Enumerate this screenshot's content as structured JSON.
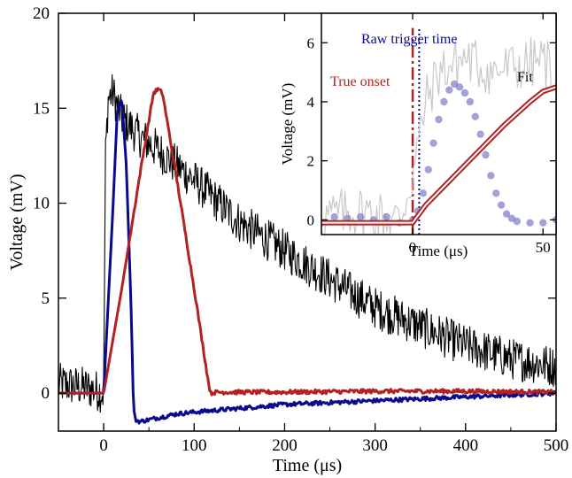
{
  "chart_data": [
    {
      "type": "line",
      "xlabel": "Time (μs)",
      "ylabel": "Voltage (mV)",
      "xlim": [
        -50,
        500
      ],
      "ylim": [
        -2,
        20
      ],
      "xticks": [
        "0",
        "100",
        "200",
        "300",
        "400",
        "500"
      ],
      "yticks": [
        "0",
        "5",
        "10",
        "15",
        "20"
      ],
      "grid": false,
      "series": [
        {
          "color": "#000000",
          "style": "noisy",
          "x": [
            -50,
            -20,
            -5,
            0,
            2,
            5,
            10,
            20,
            40,
            60,
            80,
            100,
            150,
            200,
            250,
            300,
            350,
            400,
            450,
            500
          ],
          "y": [
            0.5,
            0.3,
            0.1,
            0.0,
            12.5,
            15.5,
            15.8,
            14.5,
            13.5,
            12.8,
            12.0,
            11.2,
            9.0,
            7.5,
            6.0,
            4.5,
            3.5,
            2.5,
            1.8,
            1.4
          ]
        },
        {
          "color": "#0a0a8c",
          "x": [
            -50,
            -5,
            0,
            10,
            15,
            20,
            25,
            30,
            33,
            35,
            40,
            50,
            80,
            100,
            150,
            200,
            300,
            400,
            500
          ],
          "y": [
            0,
            0,
            0,
            9.5,
            14.8,
            15.5,
            12.0,
            5.0,
            -0.8,
            -1.4,
            -1.5,
            -1.4,
            -1.1,
            -1.0,
            -0.8,
            -0.6,
            -0.4,
            -0.2,
            0.0
          ]
        },
        {
          "color": "#b22222",
          "x": [
            -50,
            -5,
            0,
            20,
            40,
            55,
            60,
            65,
            80,
            100,
            115,
            118,
            125,
            200,
            300,
            400,
            500
          ],
          "y": [
            0,
            0,
            0,
            5.5,
            11.5,
            15.8,
            16.0,
            15.8,
            11.5,
            5.5,
            0.8,
            0.0,
            0.05,
            0.05,
            0.1,
            0.1,
            0.05
          ]
        }
      ]
    },
    {
      "type": "line",
      "xlabel": "Time (μs)",
      "ylabel": "Voltage (mV)",
      "xlim": [
        -35,
        55
      ],
      "ylim": [
        -0.5,
        7
      ],
      "xticks": [
        "0",
        "50"
      ],
      "yticks": [
        "0",
        "2",
        "4",
        "6"
      ],
      "grid": false,
      "annotations": {
        "raw_trigger": "Raw trigger time",
        "true_onset": "True onset",
        "fit": "Fit"
      },
      "markers": [
        {
          "color": "#0a0a8c",
          "style": "dotted",
          "x": 2.5
        },
        {
          "color": "#b22222",
          "style": "dashdot",
          "x": 0
        }
      ],
      "series": [
        {
          "color": "#c8c8c8",
          "style": "noisy",
          "x": [
            -35,
            -20,
            -5,
            0,
            5,
            10,
            20,
            30,
            40,
            50,
            55
          ],
          "y": [
            0.1,
            0.3,
            0.0,
            1.5,
            4.0,
            5.0,
            5.5,
            5.0,
            5.2,
            5.4,
            5.0
          ]
        },
        {
          "color": "#7b7bcc",
          "style": "dots",
          "x": [
            -35,
            -30,
            -25,
            -20,
            -15,
            -10,
            -5,
            0,
            2,
            4,
            6,
            8,
            10,
            12,
            14,
            16,
            18,
            20,
            22,
            24,
            26,
            28,
            30,
            32,
            34,
            36,
            38,
            40,
            45,
            50,
            55
          ],
          "y": [
            -0.1,
            0.1,
            0.05,
            0.1,
            0.0,
            0.1,
            -0.1,
            0.0,
            0.3,
            0.9,
            1.7,
            2.6,
            3.4,
            4.0,
            4.4,
            4.6,
            4.5,
            4.3,
            4.0,
            3.5,
            2.9,
            2.2,
            1.5,
            0.9,
            0.5,
            0.2,
            0.05,
            -0.05,
            -0.1,
            -0.1,
            0.0
          ]
        },
        {
          "color": "#b22222",
          "style": "double",
          "x": [
            -35,
            0,
            5,
            10,
            15,
            20,
            25,
            30,
            35,
            40,
            45,
            50,
            55
          ],
          "y": [
            -0.1,
            -0.1,
            0.5,
            0.95,
            1.4,
            1.85,
            2.3,
            2.75,
            3.2,
            3.6,
            4.0,
            4.35,
            4.5
          ]
        }
      ]
    }
  ]
}
